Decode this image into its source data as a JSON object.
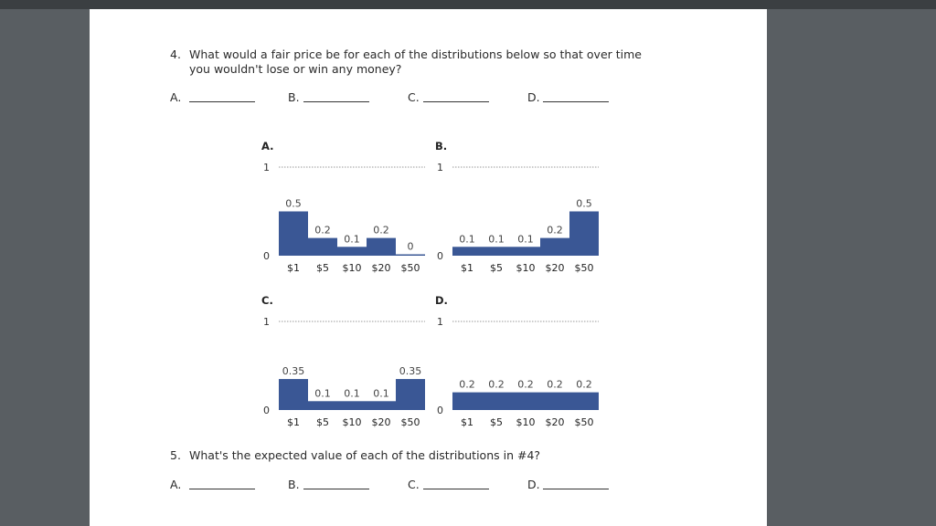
{
  "q4": {
    "number": "4.",
    "text_line1": "What would a fair price be for each of the distributions below so that over time",
    "text_line2": "you wouldn't lose or win any money?",
    "answers": [
      "A.",
      "B.",
      "C.",
      "D."
    ]
  },
  "q5": {
    "number": "5.",
    "text": "What's the expected value of each of the distributions in #4?",
    "answers": [
      "A.",
      "B.",
      "C.",
      "D."
    ]
  },
  "chart_data": [
    {
      "type": "bar",
      "title": "A.",
      "categories": [
        "$1",
        "$5",
        "$10",
        "$20",
        "$50"
      ],
      "values": [
        0.5,
        0.2,
        0.1,
        0.2,
        0
      ],
      "value_labels": [
        "0.5",
        "0.2",
        "0.1",
        "0.2",
        "0"
      ],
      "ylim": [
        0,
        1
      ],
      "y_ticks": [
        "0",
        "1"
      ],
      "color": "#3a5795"
    },
    {
      "type": "bar",
      "title": "B.",
      "categories": [
        "$1",
        "$5",
        "$10",
        "$20",
        "$50"
      ],
      "values": [
        0.1,
        0.1,
        0.1,
        0.2,
        0.5
      ],
      "value_labels": [
        "0.1",
        "0.1",
        "0.1",
        "0.2",
        "0.5"
      ],
      "ylim": [
        0,
        1
      ],
      "y_ticks": [
        "0",
        "1"
      ],
      "color": "#3a5795"
    },
    {
      "type": "bar",
      "title": "C.",
      "categories": [
        "$1",
        "$5",
        "$10",
        "$20",
        "$50"
      ],
      "values": [
        0.35,
        0.1,
        0.1,
        0.1,
        0.35
      ],
      "value_labels": [
        "0.35",
        "0.1",
        "0.1",
        "0.1",
        "0.35"
      ],
      "ylim": [
        0,
        1
      ],
      "y_ticks": [
        "0",
        "1"
      ],
      "color": "#3a5795"
    },
    {
      "type": "bar",
      "title": "D.",
      "categories": [
        "$1",
        "$5",
        "$10",
        "$20",
        "$50"
      ],
      "values": [
        0.2,
        0.2,
        0.2,
        0.2,
        0.2
      ],
      "value_labels": [
        "0.2",
        "0.2",
        "0.2",
        "0.2",
        "0.2"
      ],
      "ylim": [
        0,
        1
      ],
      "y_ticks": [
        "0",
        "1"
      ],
      "color": "#3a5795"
    }
  ]
}
